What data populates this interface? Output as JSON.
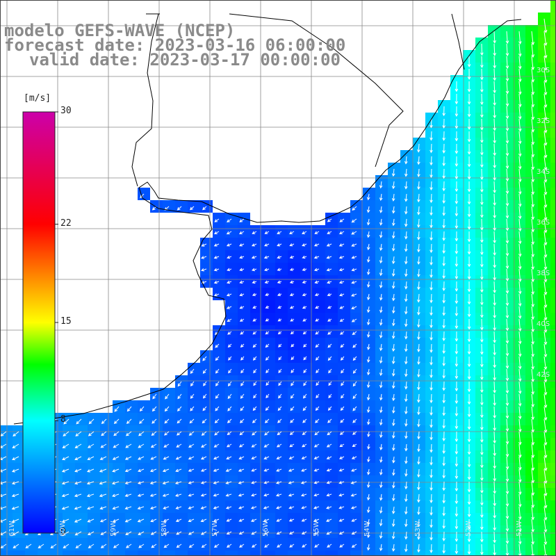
{
  "title": {
    "line1": "modelo GEFS-WAVE (NCEP)",
    "line2": "forecast date: 2023-03-16 06:00:00",
    "line3": "valid date: 2023-03-17 00:00:00"
  },
  "colorbar": {
    "unit": "[m/s]",
    "ticks": [
      {
        "label": "30",
        "value": 30
      },
      {
        "label": "22",
        "value": 22
      },
      {
        "label": "15",
        "value": 15
      },
      {
        "label": "8",
        "value": 8
      },
      {
        "label": "0",
        "value": 0
      }
    ]
  },
  "map": {
    "lat_labels": [
      "30S",
      "32S",
      "34S",
      "36S",
      "38S",
      "40S",
      "42S"
    ],
    "lon_labels": [
      "61W",
      "60W",
      "59W",
      "58W",
      "57W",
      "56W",
      "55W",
      "54W",
      "53W",
      "52W",
      "51W"
    ]
  }
}
